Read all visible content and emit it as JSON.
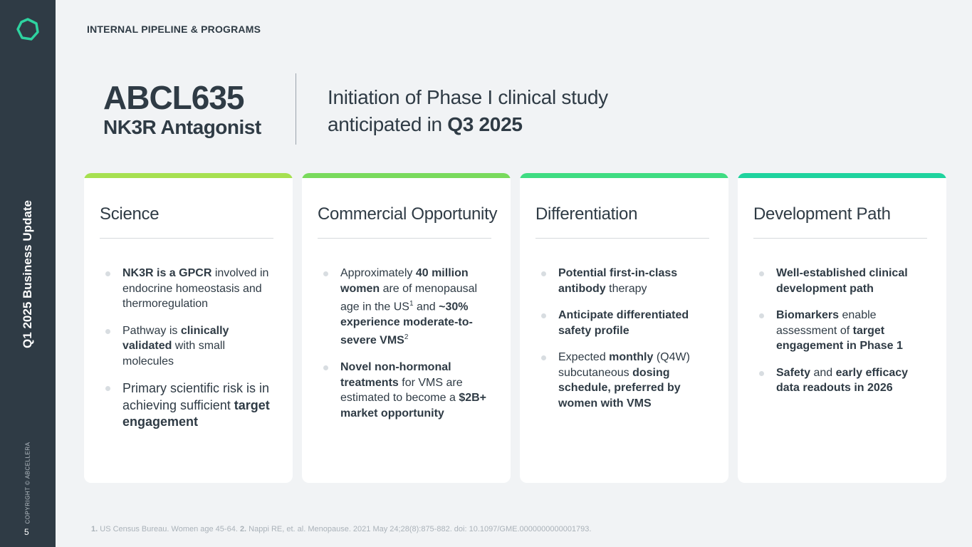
{
  "sidebar": {
    "vertical_title": "Q1 2025 Business Update",
    "copyright": "COPYRIGHT © ABCELLERA",
    "page_number": "5"
  },
  "header": {
    "section": "INTERNAL PIPELINE & PROGRAMS",
    "title": "ABCL635",
    "subtitle": "NK3R Antagonist",
    "headline_line1": "Initiation of Phase I clinical study",
    "headline_line2_prefix": "anticipated in ",
    "headline_line2_bold": "Q3 2025"
  },
  "colors": {
    "bar1": "#a6e050",
    "bar2": "#79da5c",
    "bar3": "#3fdc82",
    "bar4": "#1fd39e",
    "sidebar": "#2f3b45"
  },
  "cards": [
    {
      "title": "Science",
      "bullets": [
        [
          {
            "t": "NK3R is a GPCR",
            "b": 1
          },
          {
            "t": " involved in endocrine homeostasis and thermoregulation"
          }
        ],
        [
          {
            "t": "Pathway is "
          },
          {
            "t": "clinically validated",
            "b": 1
          },
          {
            "t": " with small molecules"
          }
        ],
        [
          {
            "t": "Primary scientific risk is in achieving sufficient "
          },
          {
            "t": "target engagement",
            "b": 1
          }
        ]
      ]
    },
    {
      "title": "Commercial Opportunity",
      "bullets": [
        [
          {
            "t": "Approximately "
          },
          {
            "t": "40 million women",
            "b": 1
          },
          {
            "t": " are of menopausal age in the US"
          },
          {
            "t": "1",
            "s": 1
          },
          {
            "t": " and "
          },
          {
            "t": "~30% experience moderate-to-severe VMS",
            "b": 1
          },
          {
            "t": "2",
            "s": 1
          }
        ],
        [
          {
            "t": "Novel non-hormonal treatments",
            "b": 1
          },
          {
            "t": " for VMS are estimated to become a "
          },
          {
            "t": "$2B+ market opportunity",
            "b": 1
          }
        ]
      ]
    },
    {
      "title": "Differentiation",
      "bullets": [
        [
          {
            "t": "Potential first-in-class antibody",
            "b": 1
          },
          {
            "t": " therapy"
          }
        ],
        [
          {
            "t": "Anticipate differentiated safety profile",
            "b": 1
          }
        ],
        [
          {
            "t": "Expected "
          },
          {
            "t": "monthly",
            "b": 1
          },
          {
            "t": " (Q4W) subcutaneous "
          },
          {
            "t": "dosing schedule, preferred by women with VMS",
            "b": 1
          }
        ]
      ]
    },
    {
      "title": "Development Path",
      "bullets": [
        [
          {
            "t": "Well-established clinical development path",
            "b": 1
          }
        ],
        [
          {
            "t": "Biomarkers",
            "b": 1
          },
          {
            "t": " enable assessment of "
          },
          {
            "t": "target engagement in Phase 1",
            "b": 1
          }
        ],
        [
          {
            "t": "Safety",
            "b": 1
          },
          {
            "t": " and "
          },
          {
            "t": "early efficacy data readouts in 2026",
            "b": 1
          }
        ]
      ]
    }
  ],
  "footnote": [
    {
      "t": "1.",
      "b": 1
    },
    {
      "t": " US Census Bureau. Women age 45-64. "
    },
    {
      "t": "2.",
      "b": 1
    },
    {
      "t": " Nappi RE, et. al. Menopause. 2021 May 24;28(8):875-882. doi: 10.1097/GME.0000000000001793."
    }
  ]
}
